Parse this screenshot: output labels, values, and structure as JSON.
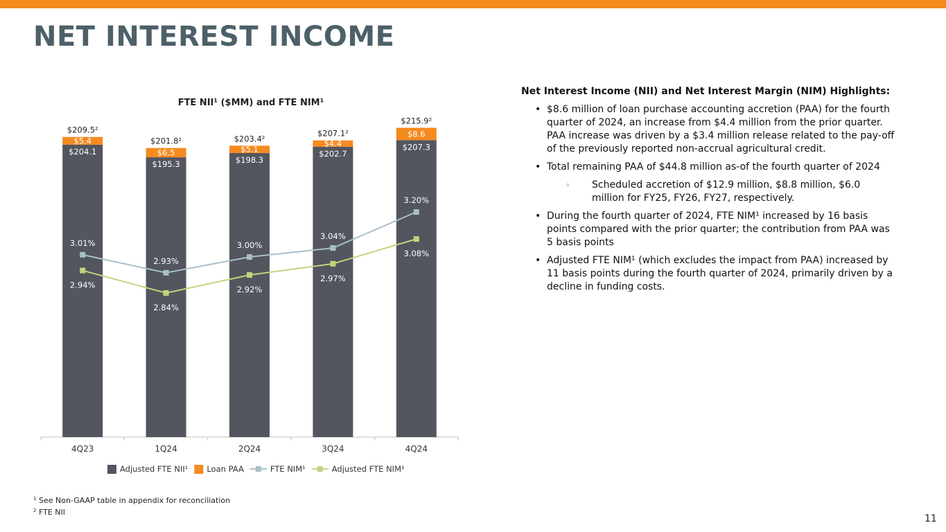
{
  "slide": {
    "title": "NET INTEREST INCOME",
    "page_number": "11",
    "accent_color": "#f58a1f",
    "title_color": "#4d6068"
  },
  "highlights": {
    "heading": "Net Interest Income (NII) and Net Interest Margin (NIM) Highlights:",
    "bullets": [
      "$8.6 million of loan purchase accounting accretion (PAA) for the fourth quarter of 2024, an increase from $4.4 million from the prior quarter. PAA increase was driven by a $3.4 million release related to the pay-off of the previously reported non-accrual agricultural credit.",
      "Total remaining PAA of $44.8 million as-of the fourth quarter of 2024",
      "Scheduled accretion of $12.9 million, $8.8 million, $6.0 million for FY25, FY26, FY27, respectively.",
      "During the fourth quarter of 2024, FTE NIM¹ increased by 16 basis points compared with the prior quarter; the contribution from PAA was 5 basis points",
      "Adjusted FTE NIM¹ (which excludes the impact from PAA) increased by 11 basis points during the fourth quarter of 2024, primarily driven by a decline in funding costs."
    ]
  },
  "footnotes": {
    "note1_marker": "1",
    "note1": "See Non-GAAP table in appendix for reconciliation",
    "note2_marker": "2",
    "note2": "FTE NII"
  },
  "chart_data": {
    "type": "bar",
    "title": "FTE NII¹ ($MM) and FTE NIM¹",
    "categories": [
      "4Q23",
      "1Q24",
      "2Q24",
      "3Q24",
      "4Q24"
    ],
    "stacked": true,
    "series": [
      {
        "name": "Adjusted FTE NII¹",
        "kind": "bar",
        "color": "#53565e",
        "values": [
          204.1,
          195.3,
          198.3,
          202.7,
          207.3
        ],
        "labels": [
          "$204.1",
          "$195.3",
          "$198.3",
          "$202.7",
          "$207.3"
        ]
      },
      {
        "name": "Loan PAA",
        "kind": "bar",
        "color": "#f58a1f",
        "values": [
          5.4,
          6.5,
          5.1,
          4.4,
          8.6
        ],
        "labels": [
          "$5.4",
          "$6.5",
          "$5.1",
          "$4.4",
          "$8.6"
        ]
      },
      {
        "name": "FTE NIM¹",
        "kind": "line",
        "color": "#a8bfc8",
        "values": [
          3.01,
          2.93,
          3.0,
          3.04,
          3.2
        ],
        "labels": [
          "3.01%",
          "2.93%",
          "3.00%",
          "3.04%",
          "3.20%"
        ]
      },
      {
        "name": "Adjusted FTE NIM¹",
        "kind": "line",
        "color": "#c3d47c",
        "values": [
          2.94,
          2.84,
          2.92,
          2.97,
          3.08
        ],
        "labels": [
          "2.94%",
          "2.84%",
          "2.92%",
          "2.97%",
          "3.08%"
        ]
      }
    ],
    "totals": [
      209.5,
      201.8,
      203.4,
      207.1,
      215.9
    ],
    "total_labels": [
      "$209.5²",
      "$201.8²",
      "$203.4²",
      "$207.1²",
      "$215.9²"
    ],
    "ylim": [
      0,
      220
    ],
    "y2lim": [
      2.2,
      3.6
    ],
    "grid": false,
    "legend": "bottom"
  }
}
